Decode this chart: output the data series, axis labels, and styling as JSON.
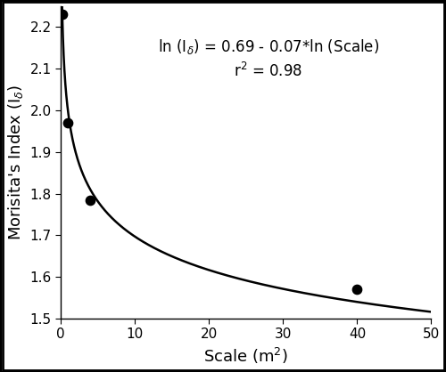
{
  "scatter_x": [
    0.25,
    1,
    4,
    40
  ],
  "scatter_y": [
    2.23,
    1.97,
    1.785,
    1.57
  ],
  "equation_intercept": 0.69,
  "equation_slope": -0.07,
  "annotation_line1": "ln (I$_\\delta$) = 0.69 - 0.07*ln (Scale)",
  "annotation_line2": "r$^2$ = 0.98",
  "xlabel": "Scale (m$^2$)",
  "ylabel": "Morisita's Index (I$_\\delta$)",
  "xlim": [
    0,
    50
  ],
  "ylim": [
    1.5,
    2.25
  ],
  "yticks": [
    1.5,
    1.6,
    1.7,
    1.8,
    1.9,
    2.0,
    2.1,
    2.2
  ],
  "xticks": [
    0,
    10,
    20,
    30,
    40,
    50
  ],
  "curve_x_start": 0.01,
  "curve_x_end": 50,
  "line_color": "#000000",
  "dot_color": "#000000",
  "dot_size": 55,
  "background_color": "#ffffff",
  "annotation_fontsize": 12,
  "axis_label_fontsize": 13,
  "tick_fontsize": 11,
  "border_color": "#000000"
}
